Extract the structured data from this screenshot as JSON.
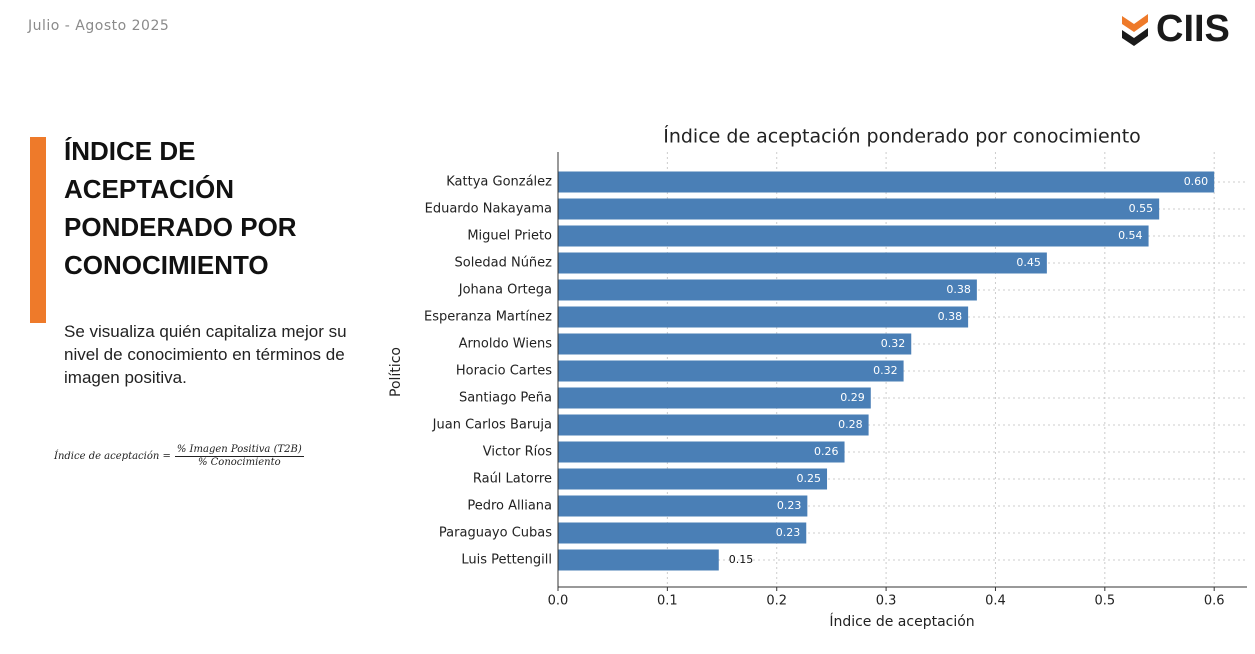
{
  "header": {
    "period": "Julio - Agosto 2025",
    "logo": "CIIS"
  },
  "slide": {
    "title": "ÍNDICE DE ACEPTACIÓN PONDERADO POR CONOCIMIENTO",
    "description": "Se visualiza quién capitaliza mejor su nivel de conocimiento en términos de imagen positiva.",
    "formula": {
      "lhs": "Índice de aceptación =",
      "numerator": "% Imagen Positiva (T2B)",
      "denominator": "% Conocimiento"
    }
  },
  "chart_data": {
    "type": "hbar",
    "title": "Índice de aceptación ponderado por conocimiento",
    "x_label": "Índice de aceptación",
    "y_label": "Político",
    "categories": [
      "Kattya González",
      "Eduardo Nakayama",
      "Miguel Prieto",
      "Soledad Núñez",
      "Johana Ortega",
      "Esperanza Martínez",
      "Arnoldo Wiens",
      "Horacio Cartes",
      "Santiago Peña",
      "Juan Carlos Baruja",
      "Victor Ríos",
      "Raúl Latorre",
      "Pedro Alliana",
      "Paraguayo Cubas",
      "Luis Pettengill"
    ],
    "values": [
      0.6,
      0.5497,
      0.54,
      0.447,
      0.383,
      0.375,
      0.323,
      0.316,
      0.286,
      0.284,
      0.262,
      0.246,
      0.228,
      0.227,
      0.147
    ],
    "value_labels": [
      "0.60",
      "0.55",
      "0.54",
      "0.45",
      "0.38",
      "0.38",
      "0.32",
      "0.32",
      "0.29",
      "0.28",
      "0.26",
      "0.25",
      "0.23",
      "0.23",
      "0.15"
    ],
    "color": "#4a7fb6",
    "xlim": [
      0,
      0.63
    ],
    "xticks": [
      {
        "value": 0,
        "label": "0.0"
      },
      0.1,
      0.2,
      0.3,
      0.4,
      0.5,
      0.6
    ],
    "grid": true
  }
}
